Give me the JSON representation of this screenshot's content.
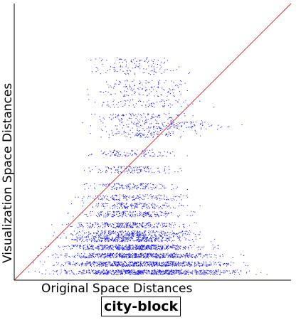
{
  "chart_data": {
    "type": "scatter",
    "title": "",
    "xlabel": "Original Space Distances",
    "ylabel": "Visualization Space Distances",
    "metric_label": "city-block",
    "xlim": [
      0,
      1
    ],
    "ylim": [
      0,
      1
    ],
    "grid": false,
    "colors": {
      "points": "#0000ff",
      "reference_line": "#cc2222",
      "axes": "#000000"
    },
    "reference_line": {
      "name": "y = x",
      "from": [
        0,
        0
      ],
      "to": [
        1,
        1
      ]
    },
    "bands": [
      {
        "y": 0.03,
        "x_min": 0.0,
        "x_max": 0.95,
        "density": 1.0
      },
      {
        "y": 0.06,
        "x_min": 0.02,
        "x_max": 0.92,
        "density": 0.95
      },
      {
        "y": 0.09,
        "x_min": 0.05,
        "x_max": 0.85,
        "density": 0.85
      },
      {
        "y": 0.12,
        "x_min": 0.06,
        "x_max": 0.8,
        "density": 0.75
      },
      {
        "y": 0.15,
        "x_min": 0.08,
        "x_max": 0.75,
        "density": 0.55
      },
      {
        "y": 0.17,
        "x_min": 0.1,
        "x_max": 0.75,
        "density": 0.45
      },
      {
        "y": 0.2,
        "x_min": 0.12,
        "x_max": 0.7,
        "density": 0.4
      },
      {
        "y": 0.24,
        "x_min": 0.15,
        "x_max": 0.72,
        "density": 0.3
      },
      {
        "y": 0.27,
        "x_min": 0.18,
        "x_max": 0.7,
        "density": 0.25
      },
      {
        "y": 0.3,
        "x_min": 0.15,
        "x_max": 0.7,
        "density": 0.22
      },
      {
        "y": 0.34,
        "x_min": 0.2,
        "x_max": 0.68,
        "density": 0.2
      },
      {
        "y": 0.4,
        "x_min": 0.22,
        "x_max": 0.65,
        "density": 0.18
      },
      {
        "y": 0.46,
        "x_min": 0.2,
        "x_max": 0.66,
        "density": 0.15
      },
      {
        "y": 0.53,
        "x_min": 0.22,
        "x_max": 0.72,
        "density": 0.15
      },
      {
        "y": 0.56,
        "x_min": 0.22,
        "x_max": 0.85,
        "density": 0.22
      },
      {
        "y": 0.59,
        "x_min": 0.22,
        "x_max": 0.72,
        "density": 0.15
      },
      {
        "y": 0.64,
        "x_min": 0.2,
        "x_max": 0.75,
        "density": 0.12
      },
      {
        "y": 0.68,
        "x_min": 0.22,
        "x_max": 0.7,
        "density": 0.1
      },
      {
        "y": 0.71,
        "x_min": 0.2,
        "x_max": 0.72,
        "density": 0.1
      },
      {
        "y": 0.76,
        "x_min": 0.22,
        "x_max": 0.68,
        "density": 0.1
      },
      {
        "y": 0.79,
        "x_min": 0.22,
        "x_max": 0.65,
        "density": 0.08
      }
    ]
  }
}
